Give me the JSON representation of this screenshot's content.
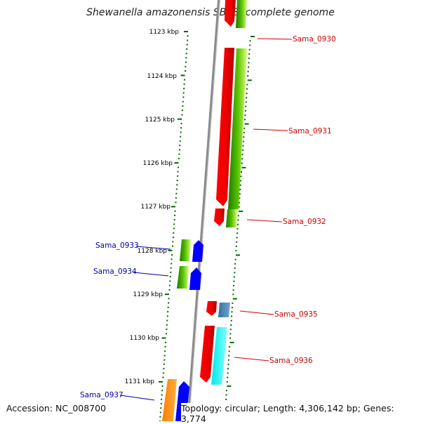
{
  "title": "Shewanella amazonensis SB2B, complete genome",
  "accession": "Accession: NC_008700",
  "topology": "Topology: circular; Length: 4,306,142 bp; Genes: 3,774",
  "ticks": [
    "1123 kbp",
    "1124 kbp",
    "1125 kbp",
    "1126 kbp",
    "1127 kbp",
    "1128 kbp",
    "1129 kbp",
    "1130 kbp",
    "1131 kbp"
  ],
  "genes_right": [
    "Sama_0930",
    "Sama_0931",
    "Sama_0932",
    "Sama_0935",
    "Sama_0936"
  ],
  "genes_left": [
    "Sama_0933",
    "Sama_0934",
    "Sama_0937"
  ],
  "colors": {
    "forward_gene": "#ff0000",
    "reverse_gene": "#0000ff",
    "right_label": "#cc0000",
    "left_label": "#0000aa",
    "tick": "#006600",
    "backbone": "#888888",
    "cds_green": "#2e8b00",
    "cds_cyan": "#00ffff",
    "cds_steelblue": "#4682b4",
    "cds_orange": "#ff8c00"
  }
}
